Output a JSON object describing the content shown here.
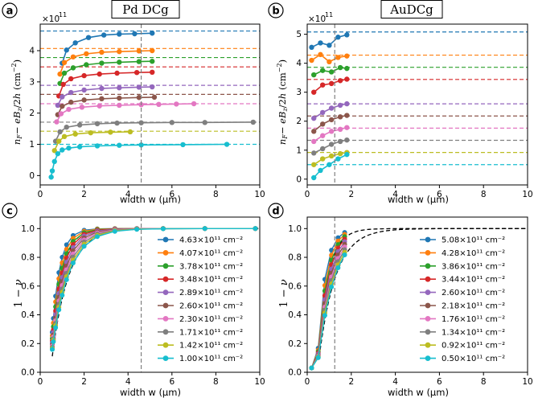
{
  "colors": [
    "#1f77b4",
    "#ff7f0e",
    "#2ca02c",
    "#d62728",
    "#9467bd",
    "#8c564b",
    "#e377c2",
    "#7f7f7f",
    "#bcbd22",
    "#17becf"
  ],
  "chart_data": [
    {
      "panel_label": "a",
      "title": "Pd DCg",
      "type": "line",
      "xlabel": "width w (μm)",
      "ylabel": "n_F − eB_z/2h (cm⁻²)",
      "y_multiplier": "×10^11",
      "xlim": [
        0,
        10
      ],
      "ylim": [
        -0.3,
        4.85
      ],
      "xticks": [
        "0",
        "2",
        "4",
        "6",
        "8",
        "10"
      ],
      "yticks": [
        "0",
        "1",
        "2",
        "3",
        "4"
      ],
      "vline_x": 4.6,
      "series": [
        {
          "level": 4.63,
          "points": [
            [
              1.0,
              3.6
            ],
            [
              1.2,
              4.02
            ],
            [
              1.6,
              4.25
            ],
            [
              2.2,
              4.42
            ],
            [
              2.9,
              4.5
            ],
            [
              3.6,
              4.53
            ],
            [
              4.3,
              4.54
            ],
            [
              5.1,
              4.56
            ]
          ]
        },
        {
          "level": 4.07,
          "points": [
            [
              0.9,
              3.25
            ],
            [
              1.1,
              3.62
            ],
            [
              1.5,
              3.8
            ],
            [
              2.1,
              3.9
            ],
            [
              2.8,
              3.95
            ],
            [
              3.6,
              3.97
            ],
            [
              4.5,
              3.99
            ],
            [
              5.1,
              4.0
            ]
          ]
        },
        {
          "level": 3.78,
          "points": [
            [
              0.9,
              2.95
            ],
            [
              1.1,
              3.28
            ],
            [
              1.5,
              3.45
            ],
            [
              2.1,
              3.55
            ],
            [
              2.8,
              3.6
            ],
            [
              3.6,
              3.63
            ],
            [
              4.5,
              3.65
            ],
            [
              5.1,
              3.66
            ]
          ]
        },
        {
          "level": 3.48,
          "points": [
            [
              0.85,
              2.55
            ],
            [
              1.05,
              2.92
            ],
            [
              1.4,
              3.1
            ],
            [
              2.0,
              3.2
            ],
            [
              2.7,
              3.25
            ],
            [
              3.5,
              3.28
            ],
            [
              4.4,
              3.3
            ],
            [
              5.1,
              3.31
            ]
          ]
        },
        {
          "level": 2.89,
          "points": [
            [
              0.8,
              2.25
            ],
            [
              1.0,
              2.52
            ],
            [
              1.4,
              2.66
            ],
            [
              2.0,
              2.74
            ],
            [
              2.8,
              2.79
            ],
            [
              3.6,
              2.81
            ],
            [
              4.5,
              2.83
            ],
            [
              5.1,
              2.84
            ]
          ]
        },
        {
          "level": 2.6,
          "points": [
            [
              0.8,
              1.95
            ],
            [
              1.0,
              2.22
            ],
            [
              1.4,
              2.35
            ],
            [
              2.0,
              2.42
            ],
            [
              2.8,
              2.46
            ],
            [
              3.6,
              2.48
            ],
            [
              4.5,
              2.5
            ],
            [
              5.2,
              2.51
            ]
          ]
        },
        {
          "level": 2.3,
          "points": [
            [
              0.75,
              1.72
            ],
            [
              0.95,
              1.98
            ],
            [
              1.3,
              2.12
            ],
            [
              1.9,
              2.19
            ],
            [
              2.7,
              2.23
            ],
            [
              3.6,
              2.25
            ],
            [
              4.6,
              2.27
            ],
            [
              5.4,
              2.28
            ],
            [
              6.2,
              2.29
            ],
            [
              7.0,
              2.3
            ]
          ]
        },
        {
          "level": 1.71,
          "points": [
            [
              0.7,
              1.1
            ],
            [
              0.9,
              1.4
            ],
            [
              1.2,
              1.55
            ],
            [
              1.8,
              1.62
            ],
            [
              2.6,
              1.66
            ],
            [
              3.5,
              1.68
            ],
            [
              4.6,
              1.69
            ],
            [
              6.0,
              1.7
            ],
            [
              7.5,
              1.7
            ],
            [
              9.7,
              1.71
            ]
          ]
        },
        {
          "level": 1.42,
          "points": [
            [
              0.65,
              0.8
            ],
            [
              0.85,
              1.1
            ],
            [
              1.1,
              1.25
            ],
            [
              1.6,
              1.33
            ],
            [
              2.3,
              1.37
            ],
            [
              3.2,
              1.39
            ],
            [
              4.1,
              1.4
            ]
          ]
        },
        {
          "level": 1.0,
          "points": [
            [
              0.5,
              -0.05
            ],
            [
              0.55,
              0.15
            ],
            [
              0.65,
              0.45
            ],
            [
              0.8,
              0.7
            ],
            [
              1.0,
              0.82
            ],
            [
              1.3,
              0.88
            ],
            [
              1.8,
              0.92
            ],
            [
              2.6,
              0.95
            ],
            [
              3.6,
              0.97
            ],
            [
              4.6,
              0.98
            ],
            [
              6.5,
              0.99
            ],
            [
              8.5,
              1.0
            ]
          ]
        }
      ]
    },
    {
      "panel_label": "b",
      "title": "AuDCg",
      "type": "line",
      "xlabel": "width w (μm)",
      "ylabel": "n_F − eB_z/2h (cm⁻²)",
      "y_multiplier": "×10^11",
      "xlim": [
        0,
        10
      ],
      "ylim": [
        -0.2,
        5.35
      ],
      "xticks": [
        "0",
        "2",
        "4",
        "6",
        "8",
        "10"
      ],
      "yticks": [
        "0",
        "1",
        "2",
        "3",
        "4",
        "5"
      ],
      "vline_x": 1.25,
      "series": [
        {
          "level": 5.08,
          "points": [
            [
              0.2,
              4.55
            ],
            [
              0.6,
              4.7
            ],
            [
              1.0,
              4.62
            ],
            [
              1.4,
              4.9
            ],
            [
              1.8,
              4.98
            ]
          ]
        },
        {
          "level": 4.28,
          "points": [
            [
              0.2,
              4.1
            ],
            [
              0.6,
              4.3
            ],
            [
              1.0,
              4.05
            ],
            [
              1.4,
              4.2
            ],
            [
              1.8,
              4.25
            ]
          ]
        },
        {
          "level": 3.86,
          "points": [
            [
              0.3,
              3.6
            ],
            [
              0.7,
              3.75
            ],
            [
              1.1,
              3.7
            ],
            [
              1.5,
              3.85
            ],
            [
              1.8,
              3.82
            ]
          ]
        },
        {
          "level": 3.44,
          "points": [
            [
              0.3,
              3.0
            ],
            [
              0.7,
              3.25
            ],
            [
              1.1,
              3.3
            ],
            [
              1.5,
              3.4
            ],
            [
              1.8,
              3.45
            ]
          ]
        },
        {
          "level": 2.6,
          "points": [
            [
              0.3,
              2.1
            ],
            [
              0.7,
              2.3
            ],
            [
              1.1,
              2.45
            ],
            [
              1.5,
              2.55
            ],
            [
              1.8,
              2.6
            ]
          ]
        },
        {
          "level": 2.18,
          "points": [
            [
              0.3,
              1.65
            ],
            [
              0.7,
              1.9
            ],
            [
              1.1,
              2.05
            ],
            [
              1.5,
              2.15
            ],
            [
              1.8,
              2.2
            ]
          ]
        },
        {
          "level": 1.76,
          "points": [
            [
              0.3,
              1.3
            ],
            [
              0.7,
              1.5
            ],
            [
              1.1,
              1.65
            ],
            [
              1.5,
              1.72
            ],
            [
              1.8,
              1.78
            ]
          ]
        },
        {
          "level": 1.34,
          "points": [
            [
              0.3,
              0.9
            ],
            [
              0.7,
              1.05
            ],
            [
              1.1,
              1.2
            ],
            [
              1.5,
              1.3
            ],
            [
              1.8,
              1.35
            ]
          ]
        },
        {
          "level": 0.92,
          "points": [
            [
              0.3,
              0.5
            ],
            [
              0.7,
              0.7
            ],
            [
              1.1,
              0.8
            ],
            [
              1.5,
              0.88
            ],
            [
              1.8,
              0.92
            ]
          ]
        },
        {
          "level": 0.5,
          "points": [
            [
              0.3,
              0.05
            ],
            [
              0.6,
              0.3
            ],
            [
              1.0,
              0.5
            ],
            [
              1.4,
              0.7
            ],
            [
              1.8,
              0.85
            ]
          ]
        }
      ]
    },
    {
      "panel_label": "c",
      "type": "line",
      "xlabel": "width w (μm)",
      "ylabel": "1 − 1/2ν",
      "xlim": [
        0,
        10
      ],
      "ylim": [
        0,
        1.08
      ],
      "xticks": [
        "0",
        "2",
        "4",
        "6",
        "8",
        "10"
      ],
      "yticks": [
        "0.0",
        "0.2",
        "0.4",
        "0.6",
        "0.8",
        "1.0"
      ],
      "vline_x": 4.6,
      "legend": [
        "4.63×10¹¹ cm⁻²",
        "4.07×10¹¹ cm⁻²",
        "3.78×10¹¹ cm⁻²",
        "3.48×10¹¹ cm⁻²",
        "2.89×10¹¹ cm⁻²",
        "2.60×10¹¹ cm⁻²",
        "2.30×10¹¹ cm⁻²",
        "1.71×10¹¹ cm⁻²",
        "1.42×10¹¹ cm⁻²",
        "1.00×10¹¹ cm⁻²"
      ],
      "x_points": [
        0.55,
        0.6,
        0.7,
        0.85,
        1.0,
        1.2,
        1.5,
        2.0,
        2.6,
        3.4,
        4.4,
        5.6,
        7.5,
        9.8
      ]
    },
    {
      "panel_label": "d",
      "type": "line",
      "xlabel": "width w (μm)",
      "ylabel": "1 − 1/2ν",
      "xlim": [
        0,
        10
      ],
      "ylim": [
        0,
        1.08
      ],
      "xticks": [
        "0",
        "2",
        "4",
        "6",
        "8",
        "10"
      ],
      "yticks": [
        "0.0",
        "0.2",
        "0.4",
        "0.6",
        "0.8",
        "1.0"
      ],
      "vline_x": 1.25,
      "legend": [
        "5.08×10¹¹ cm⁻²",
        "4.28×10¹¹ cm⁻²",
        "3.86×10¹¹ cm⁻²",
        "3.44×10¹¹ cm⁻²",
        "2.60×10¹¹ cm⁻²",
        "2.18×10¹¹ cm⁻²",
        "1.76×10¹¹ cm⁻²",
        "1.34×10¹¹ cm⁻²",
        "0.92×10¹¹ cm⁻²",
        "0.50×10¹¹ cm⁻²"
      ],
      "x_points": [
        0.2,
        0.5,
        0.8,
        1.1,
        1.4,
        1.7
      ]
    }
  ]
}
